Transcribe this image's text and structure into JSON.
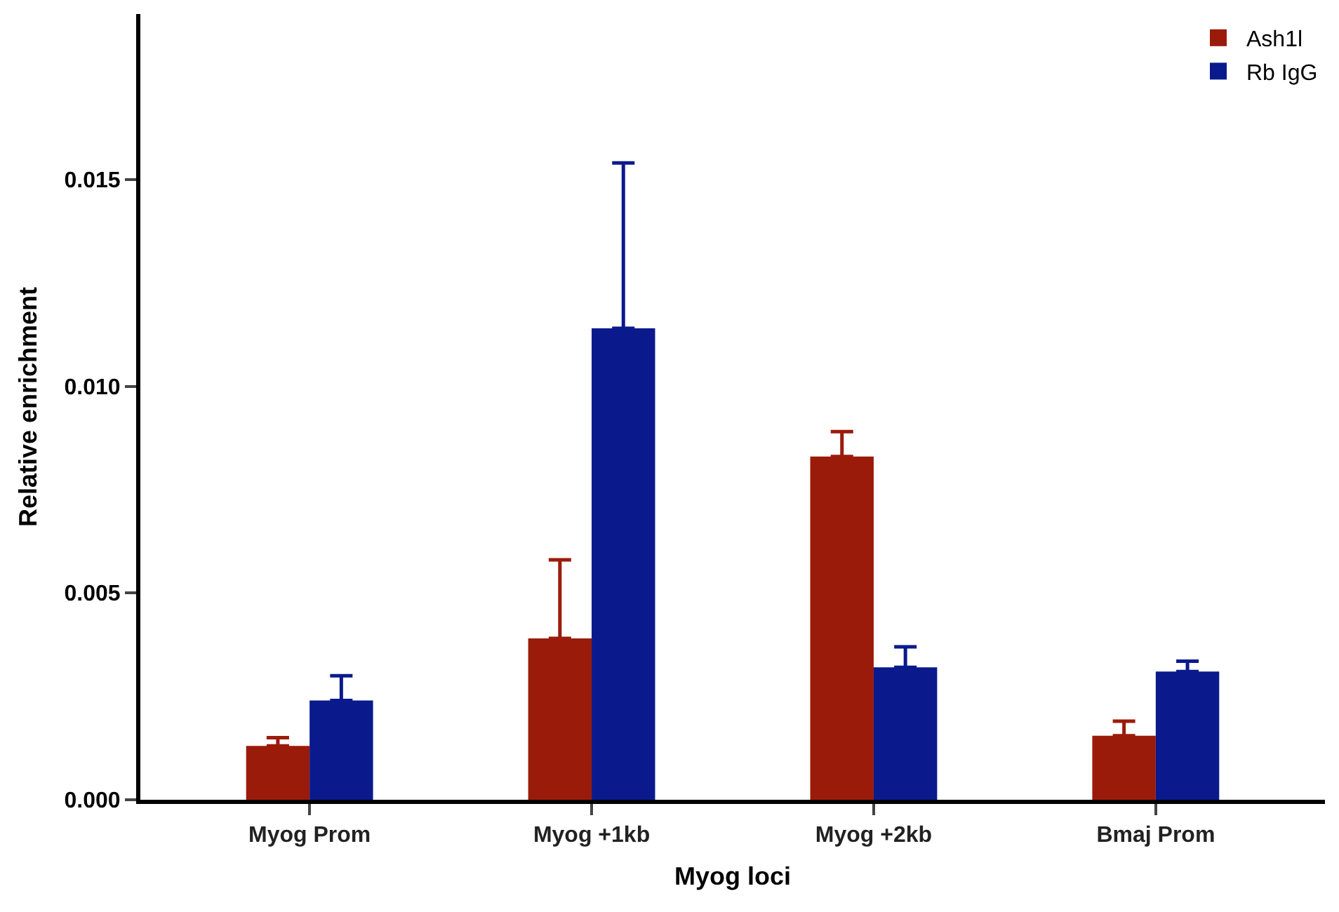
{
  "chart_data": {
    "type": "bar",
    "xlabel": "Myog loci",
    "ylabel": "Relative enrichment",
    "categories": [
      "Myog Prom",
      "Myog +1kb",
      "Myog +2kb",
      "Bmaj Prom"
    ],
    "series": [
      {
        "name": "Ash1l",
        "color": "#9b1b0a",
        "values": [
          0.0013,
          0.0039,
          0.0083,
          0.00155
        ],
        "errors": [
          [
            0.0013,
            0.0015
          ],
          [
            0.0039,
            0.0058
          ],
          [
            0.0083,
            0.0089
          ],
          [
            0.00155,
            0.0019
          ]
        ]
      },
      {
        "name": "Rb IgG",
        "color": "#0a1a8c",
        "values": [
          0.0024,
          0.0114,
          0.0032,
          0.0031
        ],
        "errors": [
          [
            0.0024,
            0.003
          ],
          [
            0.0114,
            0.0154
          ],
          [
            0.0032,
            0.0037
          ],
          [
            0.0031,
            0.00335
          ]
        ]
      }
    ],
    "ylim": [
      0,
      0.019
    ],
    "yticks": [
      {
        "value": 0,
        "label": "0.000"
      },
      {
        "value": 0.005,
        "label": "0.005"
      },
      {
        "value": 0.01,
        "label": "0.010"
      },
      {
        "value": 0.015,
        "label": "0.015"
      }
    ],
    "legend": "top right"
  }
}
